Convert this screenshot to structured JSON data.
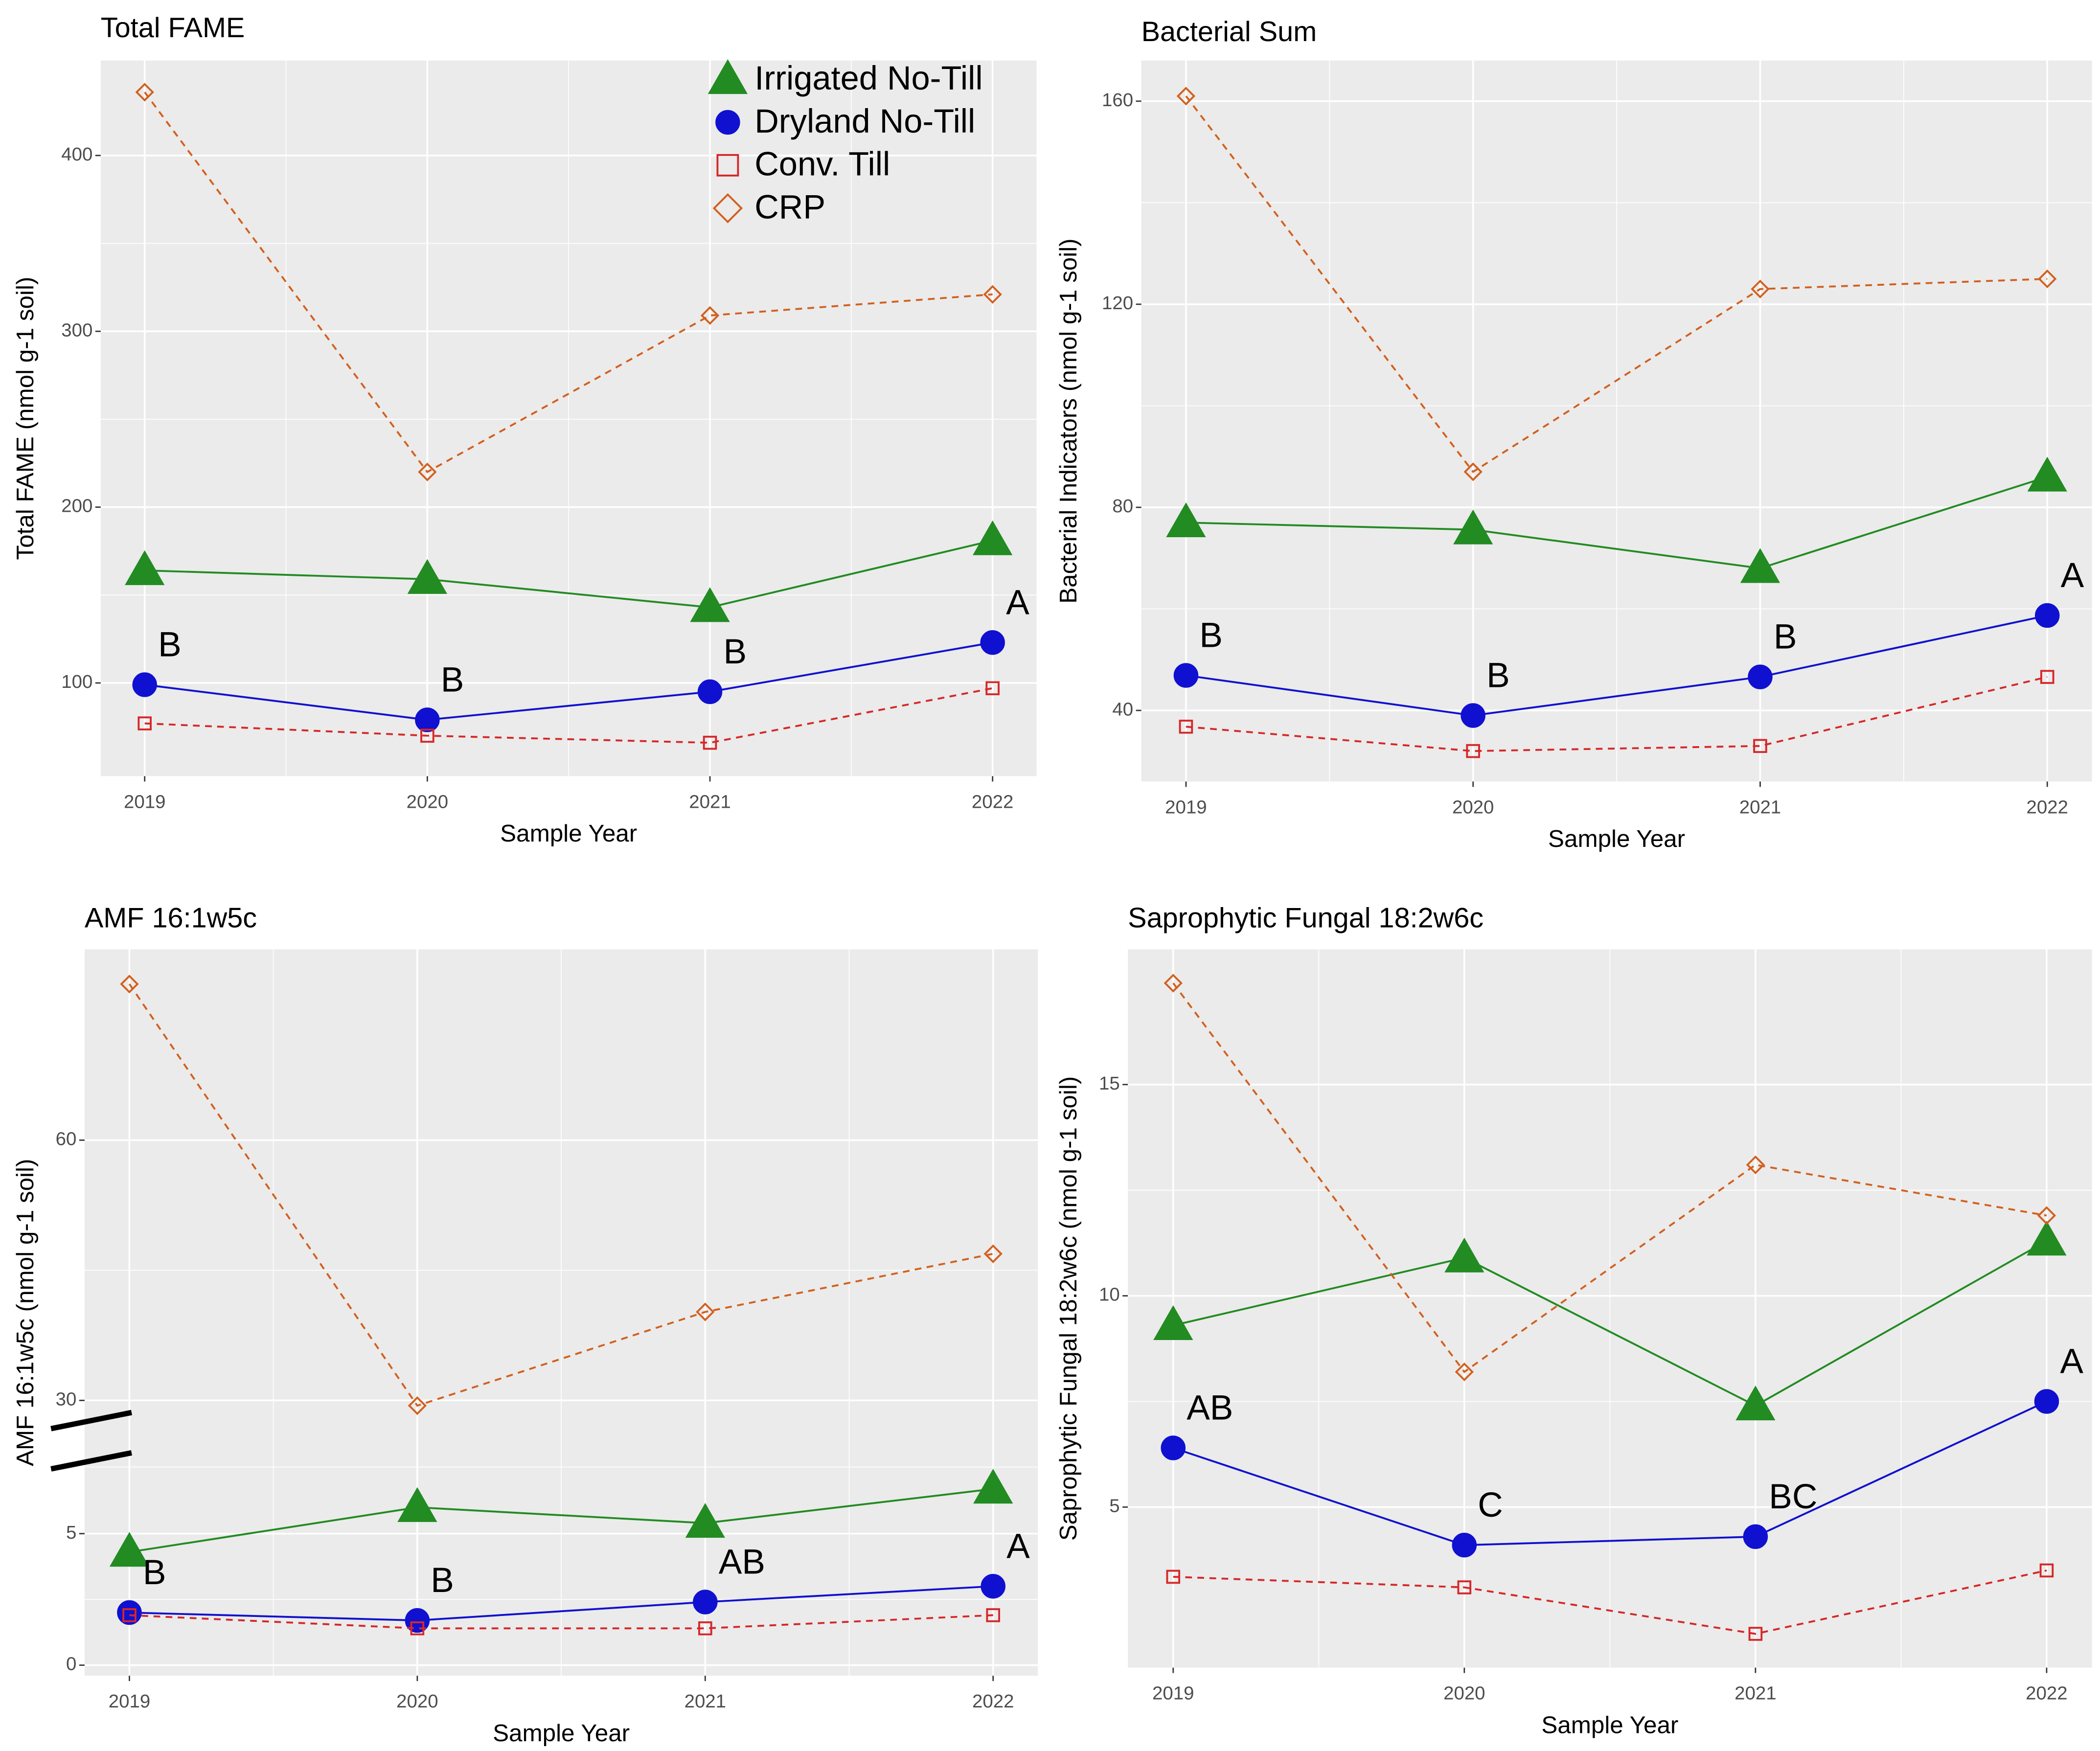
{
  "chart_data": [
    {
      "type": "line",
      "title": "Total FAME",
      "x_label": "Sample Year",
      "y_label": "Total FAME (nmol g-1 soil)",
      "categories": [
        "2019",
        "2020",
        "2021",
        "2022"
      ],
      "ylim": [
        47,
        454
      ],
      "yticks": [
        100,
        200,
        300,
        400
      ],
      "grid": true,
      "legend": "upper right",
      "series": [
        {
          "name": "Irrigated No-Till",
          "color": "#228b22",
          "marker": "triangle",
          "linestyle": "solid",
          "values": [
            164,
            159,
            143,
            181
          ]
        },
        {
          "name": "Dryland No-Till",
          "color": "#1010d0",
          "marker": "circle",
          "linestyle": "solid",
          "values": [
            99,
            79,
            95,
            123
          ],
          "letters": [
            "B",
            "B",
            "B",
            "A"
          ]
        },
        {
          "name": "Conv. Till",
          "color": "#d62728",
          "marker": "square",
          "linestyle": "dashed",
          "values": [
            77,
            70,
            66,
            97
          ]
        },
        {
          "name": "CRP",
          "color": "#d2601e",
          "marker": "diamond",
          "linestyle": "dashed",
          "values": [
            436,
            220,
            309,
            321
          ]
        }
      ]
    },
    {
      "type": "line",
      "title": "Bacterial Sum",
      "x_label": "Sample Year",
      "y_label": "Bacterial Indicators (nmol g-1 soil)",
      "categories": [
        "2019",
        "2020",
        "2021",
        "2022"
      ],
      "ylim": [
        26,
        168
      ],
      "yticks": [
        40,
        80,
        120,
        160
      ],
      "grid": true,
      "series": [
        {
          "color": "#228b22",
          "marker": "triangle",
          "linestyle": "solid",
          "values": [
            77,
            75.6,
            68,
            86
          ]
        },
        {
          "color": "#1010d0",
          "marker": "circle",
          "linestyle": "solid",
          "values": [
            46.9,
            39,
            46.6,
            58.7
          ],
          "letters": [
            "B",
            "B",
            "B",
            "A"
          ]
        },
        {
          "color": "#d62728",
          "marker": "square",
          "linestyle": "dashed",
          "values": [
            36.8,
            32,
            33,
            46.6
          ]
        },
        {
          "color": "#d2601e",
          "marker": "diamond",
          "linestyle": "dashed",
          "values": [
            161,
            87,
            123,
            125
          ]
        }
      ]
    },
    {
      "type": "line",
      "title": "AMF 16:1w5c",
      "x_label": "Sample Year",
      "y_label": "AMF 16:1w5c (nmol g-1 soil)",
      "categories": [
        "2019",
        "2020",
        "2021",
        "2022"
      ],
      "ylim": [
        -0.4,
        82
      ],
      "yticks": [
        0,
        5,
        30,
        60
      ],
      "axis_break": [
        7,
        30
      ],
      "grid": true,
      "series": [
        {
          "color": "#228b22",
          "marker": "triangle",
          "linestyle": "solid",
          "values": [
            4.3,
            6.0,
            5.4,
            6.7
          ]
        },
        {
          "color": "#1010d0",
          "marker": "circle",
          "linestyle": "solid",
          "values": [
            2.0,
            1.7,
            2.4,
            3.0
          ],
          "letters": [
            "B",
            "B",
            "AB",
            "A"
          ]
        },
        {
          "color": "#d62728",
          "marker": "square",
          "linestyle": "dashed",
          "values": [
            1.9,
            1.4,
            1.4,
            1.9
          ]
        },
        {
          "color": "#d2601e",
          "marker": "diamond",
          "linestyle": "dashed",
          "values": [
            78,
            28.5,
            40.2,
            46.9
          ]
        }
      ]
    },
    {
      "type": "line",
      "title": "Saprophytic Fungal 18:2w6c",
      "x_label": "Sample Year",
      "y_label": "Saprophytic Fungal 18:2w6c (nmol g-1 soil)",
      "categories": [
        "2019",
        "2020",
        "2021",
        "2022"
      ],
      "ylim": [
        1.2,
        18.2
      ],
      "yticks": [
        5,
        10,
        15
      ],
      "grid": true,
      "series": [
        {
          "color": "#228b22",
          "marker": "triangle",
          "linestyle": "solid",
          "values": [
            9.3,
            10.9,
            7.4,
            11.3
          ]
        },
        {
          "color": "#1010d0",
          "marker": "circle",
          "linestyle": "solid",
          "values": [
            6.4,
            4.1,
            4.3,
            7.5
          ],
          "letters": [
            "AB",
            "C",
            "BC",
            "A"
          ]
        },
        {
          "color": "#d62728",
          "marker": "square",
          "linestyle": "dashed",
          "values": [
            3.35,
            3.1,
            2.0,
            3.5
          ]
        },
        {
          "color": "#d2601e",
          "marker": "diamond",
          "linestyle": "dashed",
          "values": [
            17.4,
            8.2,
            13.1,
            11.9
          ]
        }
      ]
    }
  ]
}
